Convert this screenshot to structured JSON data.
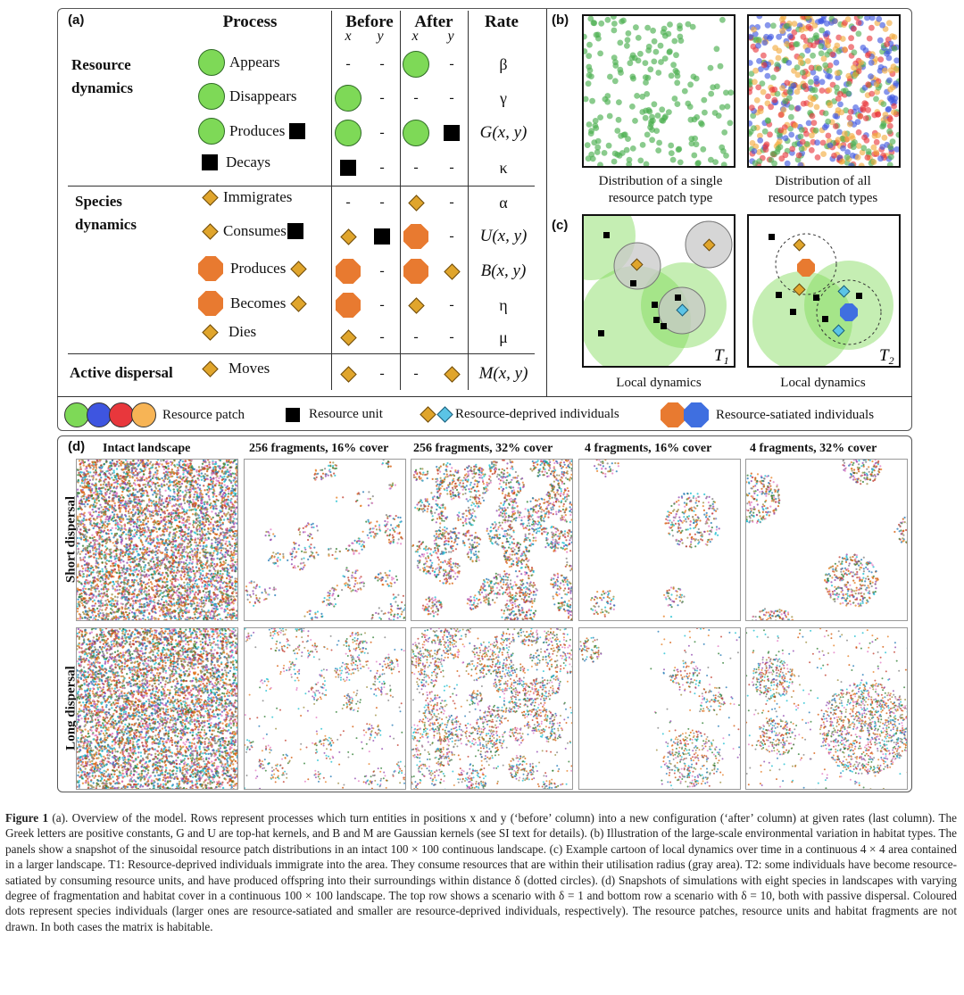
{
  "panel_a": {
    "label": "(a)",
    "headers": {
      "process": "Process",
      "before": "Before",
      "after": "After",
      "rate": "Rate",
      "x": "x",
      "y": "y"
    },
    "groups": {
      "resource": "Resource dynamics",
      "species": "Species dynamics",
      "dispersal": "Active dispersal"
    },
    "rows": [
      {
        "process": "Appears",
        "before_x": "-",
        "before_y": "-",
        "after_y": "-",
        "rate": "β"
      },
      {
        "process": "Disappears",
        "before_y": "-",
        "after_x": "-",
        "after_y": "-",
        "rate": "γ"
      },
      {
        "process": "Produces",
        "before_y": "-",
        "rate": "G(x, y)"
      },
      {
        "process": "Decays",
        "before_y": "-",
        "after_x": "-",
        "after_y": "-",
        "rate": "κ"
      },
      {
        "process": "Immigrates",
        "before_x": "-",
        "before_y": "-",
        "after_y": "-",
        "rate": "α"
      },
      {
        "process": "Consumes",
        "after_y": "-",
        "rate": "U(x, y)"
      },
      {
        "process": "Produces",
        "before_y": "-",
        "rate": "B(x, y)"
      },
      {
        "process": "Becomes",
        "before_y": "-",
        "after_y": "-",
        "rate": "η"
      },
      {
        "process": "Dies",
        "before_y": "-",
        "after_x": "-",
        "after_y": "-",
        "rate": "μ"
      },
      {
        "process": "Moves",
        "before_y": "-",
        "after_x": "-",
        "rate": "M(x, y)"
      }
    ]
  },
  "panel_b": {
    "label": "(b)",
    "caption_left": [
      "Distribution of a single",
      "resource patch type"
    ],
    "caption_right": [
      "Distribution of all",
      "resource patch types"
    ]
  },
  "panel_c": {
    "label": "(c)",
    "t1": "T",
    "t1_sub": "1",
    "t2": "T",
    "t2_sub": "2",
    "caption_left": "Local dynamics",
    "caption_right": "Local dynamics"
  },
  "legend": {
    "patch": "Resource patch",
    "unit": "Resource unit",
    "deprived": "Resource-deprived individuals",
    "satiated": "Resource-satiated individuals",
    "colors": {
      "green": "#7ed957",
      "blue": "#3e55e0",
      "red": "#e8373c",
      "orange": "#f7b455"
    }
  },
  "panel_d": {
    "label": "(d)",
    "columns": [
      "Intact landscape",
      "256 fragments, 16% cover",
      "256 fragments, 32% cover",
      "4 fragments, 16% cover",
      "4 fragments, 32% cover"
    ],
    "rows": [
      "Short dispersal",
      "Long dispersal"
    ]
  },
  "caption": {
    "lead": "Figure 1",
    "text": "(a). Overview of the model. Rows represent processes which turn entities in positions x and y (‘before’ column) into a new configuration (‘after’ column) at given rates (last column). The Greek letters are positive constants, G and U are top-hat kernels, and B and M are Gaussian kernels (see SI text for details). (b) Illustration of the large-scale environmental variation in habitat types. The panels show a snapshot of the sinusoidal resource patch distributions in an intact 100 × 100 continuous landscape. (c) Example cartoon of local dynamics over time in a continuous 4 × 4 area contained in a larger landscape. T1: Resource-deprived individuals immigrate into the area. They consume resources that are within their utilisation radius (gray area). T2: some individuals have become resource-satiated by consuming resource units, and have produced offspring into their surroundings within distance δ (dotted circles). (d) Snapshots of simulations with eight species in landscapes with varying degree of fragmentation and habitat cover in a continuous 100 × 100 landscape. The top row shows a scenario with δ = 1 and bottom row a scenario with δ = 10, both with passive dispersal. Coloured dots represent species individuals (larger ones are resource-satiated and smaller are resource-deprived individuals, respectively). The resource patches, resource units and habitat fragments are not drawn. In both cases the matrix is habitable."
  }
}
